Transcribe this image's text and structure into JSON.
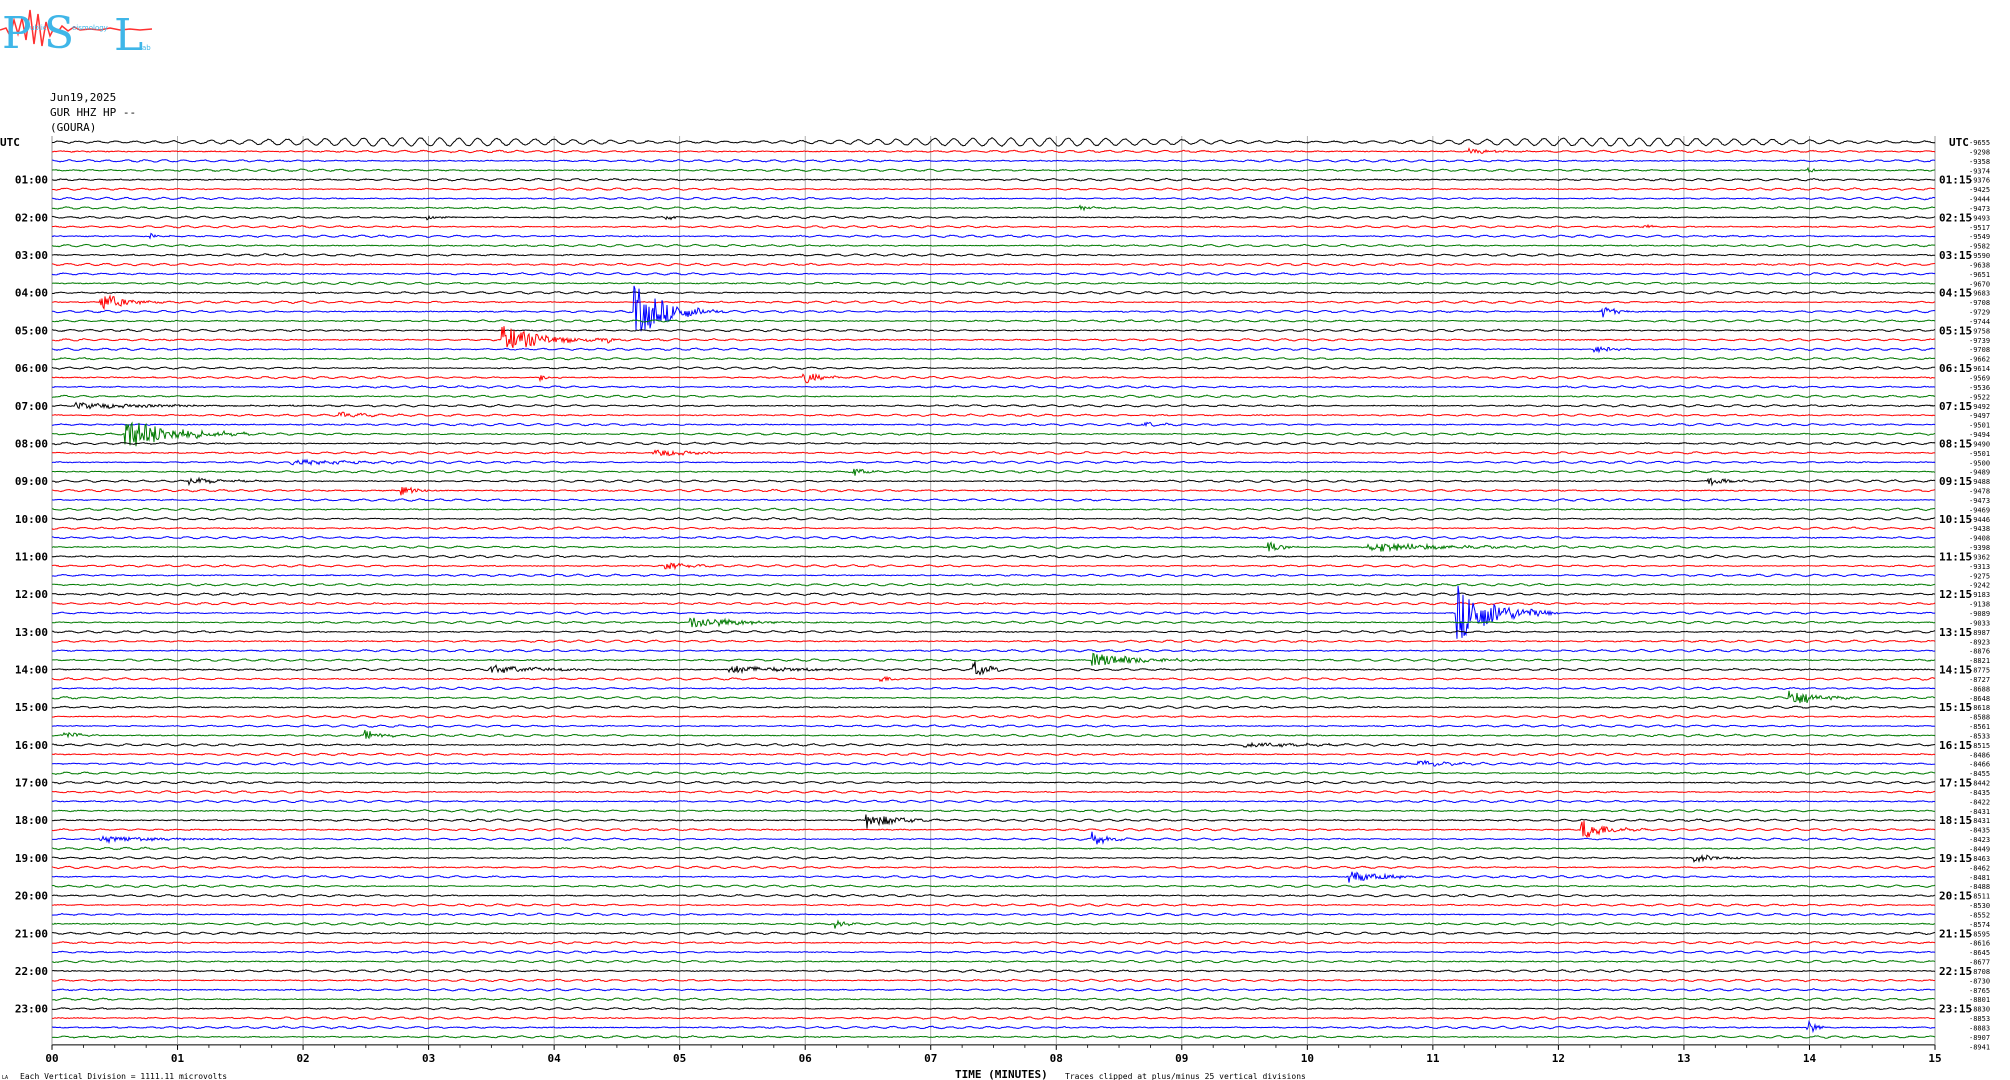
{
  "logo": {
    "letters": [
      "P",
      "S",
      "L"
    ],
    "small_text": [
      "ublic",
      "eismology",
      "ab"
    ]
  },
  "header": {
    "date": "Jun19,2025",
    "station": "GUR HHZ HP --",
    "site": "(GOURA)"
  },
  "left_axis_title": "UTC",
  "right_axis_title": "UTC",
  "footer": {
    "left_note": "Each Vertical Division = 1111.11 microvolts",
    "x_title": "TIME (MINUTES)",
    "right_note": "Traces clipped at plus/minus 25 vertical divisions",
    "tiny_mark": "LA"
  },
  "chart_data": {
    "type": "line",
    "title": "",
    "xlabel": "TIME (MINUTES)",
    "ylabel": "UTC",
    "xlim": [
      0,
      15
    ],
    "x_ticks": [
      "00",
      "01",
      "02",
      "03",
      "04",
      "05",
      "06",
      "07",
      "08",
      "09",
      "10",
      "11",
      "12",
      "13",
      "14",
      "15"
    ],
    "grid": true,
    "trace_count": 96,
    "trace_colors": [
      "#000000",
      "#ff0000",
      "#0000ff",
      "#007a00"
    ],
    "left_hour_labels": [
      "01:00",
      "02:00",
      "03:00",
      "04:00",
      "05:00",
      "06:00",
      "07:00",
      "08:00",
      "09:00",
      "10:00",
      "11:00",
      "12:00",
      "13:00",
      "14:00",
      "15:00",
      "16:00",
      "17:00",
      "18:00",
      "19:00",
      "20:00",
      "21:00",
      "22:00",
      "23:00"
    ],
    "right_hour_labels": [
      "01:15",
      "02:15",
      "03:15",
      "04:15",
      "05:15",
      "06:15",
      "07:15",
      "08:15",
      "09:15",
      "10:15",
      "11:15",
      "12:15",
      "13:15",
      "14:15",
      "15:15",
      "16:15",
      "17:15",
      "18:15",
      "19:15",
      "20:15",
      "21:15",
      "22:15",
      "23:15"
    ],
    "right_trace_values": [
      -9655,
      -9298,
      -9358,
      -9374,
      -9376,
      -9425,
      -9444,
      -9473,
      -9493,
      -9517,
      -9549,
      -9582,
      -9590,
      -9638,
      -9651,
      -9670,
      -9683,
      -9708,
      -9729,
      -9744,
      -9758,
      -9739,
      -9708,
      -9662,
      -9614,
      -9569,
      -9536,
      -9522,
      -9492,
      -9497,
      -9501,
      -9494,
      -9490,
      -9501,
      -9500,
      -9489,
      -9488,
      -9478,
      -9473,
      -9469,
      -9446,
      -9438,
      -9408,
      -9398,
      -9362,
      -9313,
      -9275,
      -9242,
      -9183,
      -9138,
      -9089,
      -9033,
      -8987,
      -8923,
      -8876,
      -8821,
      -8775,
      -8727,
      -8688,
      -8648,
      -8618,
      -8588,
      -8561,
      -8533,
      -8515,
      -8486,
      -8466,
      -8455,
      -8442,
      -8435,
      -8422,
      -8431,
      -8431,
      -8435,
      -8423,
      -8449,
      -8463,
      -8462,
      -8481,
      -8488,
      -8511,
      -8530,
      -8552,
      -8574,
      -8595,
      -8616,
      -8645,
      -8677,
      -8708,
      -8730,
      -8765,
      -8801,
      -8830,
      -8853,
      -8883,
      -8907
    ],
    "bottom_extra_value": -8941,
    "events": [
      {
        "trace": 1,
        "minute": 11.3,
        "amp": 3,
        "dur": 0.5
      },
      {
        "trace": 3,
        "minute": 14.0,
        "amp": 2,
        "dur": 0.2
      },
      {
        "trace": 7,
        "minute": 8.2,
        "amp": 2,
        "dur": 0.4
      },
      {
        "trace": 8,
        "minute": 3.0,
        "amp": 2,
        "dur": 0.3
      },
      {
        "trace": 8,
        "minute": 4.9,
        "amp": 2,
        "dur": 0.2
      },
      {
        "trace": 9,
        "minute": 12.7,
        "amp": 2,
        "dur": 0.2
      },
      {
        "trace": 10,
        "minute": 0.8,
        "amp": 2,
        "dur": 0.2
      },
      {
        "trace": 17,
        "minute": 0.4,
        "amp": 9,
        "dur": 0.5
      },
      {
        "trace": 18,
        "minute": 4.65,
        "amp": 26,
        "dur": 0.7
      },
      {
        "trace": 18,
        "minute": 12.35,
        "amp": 6,
        "dur": 0.3
      },
      {
        "trace": 21,
        "minute": 3.6,
        "amp": 14,
        "dur": 0.8
      },
      {
        "trace": 21,
        "minute": 4.4,
        "amp": 3,
        "dur": 0.3
      },
      {
        "trace": 22,
        "minute": 12.3,
        "amp": 3,
        "dur": 0.4
      },
      {
        "trace": 25,
        "minute": 6.0,
        "amp": 6,
        "dur": 0.4
      },
      {
        "trace": 25,
        "minute": 3.9,
        "amp": 3,
        "dur": 0.2
      },
      {
        "trace": 28,
        "minute": 0.2,
        "amp": 3,
        "dur": 2.0
      },
      {
        "trace": 29,
        "minute": 2.3,
        "amp": 3,
        "dur": 0.4
      },
      {
        "trace": 30,
        "minute": 8.7,
        "amp": 2,
        "dur": 0.5
      },
      {
        "trace": 31,
        "minute": 0.6,
        "amp": 16,
        "dur": 1.0
      },
      {
        "trace": 33,
        "minute": 4.8,
        "amp": 4,
        "dur": 0.8
      },
      {
        "trace": 34,
        "minute": 1.9,
        "amp": 3,
        "dur": 1.2
      },
      {
        "trace": 35,
        "minute": 6.4,
        "amp": 5,
        "dur": 0.2
      },
      {
        "trace": 36,
        "minute": 1.1,
        "amp": 3,
        "dur": 0.8
      },
      {
        "trace": 36,
        "minute": 13.2,
        "amp": 4,
        "dur": 0.4
      },
      {
        "trace": 37,
        "minute": 2.8,
        "amp": 4,
        "dur": 0.4
      },
      {
        "trace": 43,
        "minute": 9.7,
        "amp": 5,
        "dur": 0.3
      },
      {
        "trace": 43,
        "minute": 10.5,
        "amp": 5,
        "dur": 1.6
      },
      {
        "trace": 45,
        "minute": 4.9,
        "amp": 4,
        "dur": 0.5
      },
      {
        "trace": 50,
        "minute": 11.2,
        "amp": 28,
        "dur": 0.8
      },
      {
        "trace": 51,
        "minute": 5.1,
        "amp": 6,
        "dur": 1.0
      },
      {
        "trace": 55,
        "minute": 8.3,
        "amp": 7,
        "dur": 1.1
      },
      {
        "trace": 56,
        "minute": 3.5,
        "amp": 4,
        "dur": 1.2
      },
      {
        "trace": 56,
        "minute": 5.4,
        "amp": 4,
        "dur": 1.4
      },
      {
        "trace": 56,
        "minute": 7.35,
        "amp": 8,
        "dur": 0.3
      },
      {
        "trace": 57,
        "minute": 6.6,
        "amp": 3,
        "dur": 0.3
      },
      {
        "trace": 59,
        "minute": 13.85,
        "amp": 10,
        "dur": 0.5
      },
      {
        "trace": 63,
        "minute": 0.1,
        "amp": 4,
        "dur": 0.4
      },
      {
        "trace": 63,
        "minute": 2.5,
        "amp": 6,
        "dur": 0.3
      },
      {
        "trace": 64,
        "minute": 9.5,
        "amp": 3,
        "dur": 1.2
      },
      {
        "trace": 66,
        "minute": 10.9,
        "amp": 3,
        "dur": 0.6
      },
      {
        "trace": 72,
        "minute": 6.5,
        "amp": 8,
        "dur": 0.6
      },
      {
        "trace": 73,
        "minute": 12.2,
        "amp": 10,
        "dur": 0.5
      },
      {
        "trace": 74,
        "minute": 8.3,
        "amp": 7,
        "dur": 0.3
      },
      {
        "trace": 74,
        "minute": 0.4,
        "amp": 3,
        "dur": 1.4
      },
      {
        "trace": 76,
        "minute": 13.1,
        "amp": 4,
        "dur": 0.5
      },
      {
        "trace": 78,
        "minute": 10.35,
        "amp": 7,
        "dur": 0.6
      },
      {
        "trace": 83,
        "minute": 6.25,
        "amp": 5,
        "dur": 0.2
      },
      {
        "trace": 94,
        "minute": 14.0,
        "amp": 7,
        "dur": 0.15
      }
    ]
  }
}
